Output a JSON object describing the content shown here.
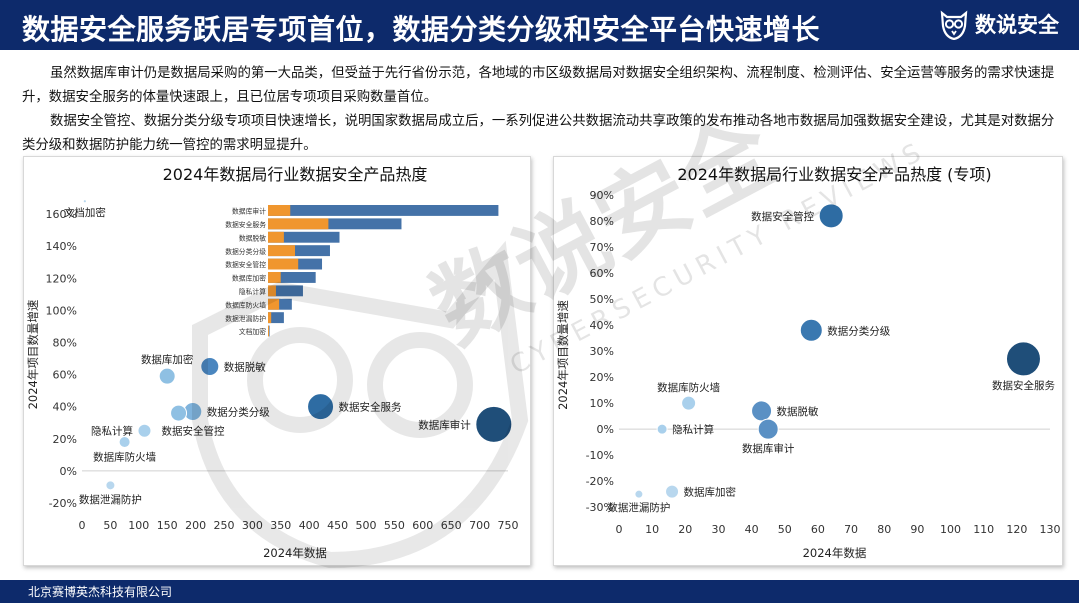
{
  "header": {
    "title": "数据安全服务跃居专项首位，数据分类分级和安全平台快速增长",
    "logo_text": "数说安全",
    "logo_icon": "owl-logo-icon"
  },
  "intro": {
    "p1": "虽然数据库审计仍是数据局采购的第一大品类，但受益于先行省份示范，各地域的市区级数据局对数据安全组织架构、流程制度、检测评估、安全运营等服务的需求快速提升，数据安全服务的体量快速跟上，且已位居专项项目采购数量首位。",
    "p2": "数据安全管控、数据分类分级专项项目快速增长，说明国家数据局成立后，一系列促进公共数据流动共享政策的发布推动各地市数据局加强数据安全建设，尤其是对数据分类分级和数据防护能力统一管控的需求明显提升。"
  },
  "watermark": {
    "text": "数说安全",
    "subtext": "CYBERSECURITY REVIEWS"
  },
  "footer": {
    "company": "北京赛博英杰科技有限公司"
  },
  "colors": {
    "navy": "#0d2a6b",
    "bar_blue": "#4472a8",
    "bar_orange": "#f0962e"
  },
  "chart_data": [
    {
      "type": "scatter",
      "title": "2024年数据局行业数据安全产品热度",
      "xlabel": "2024年数据",
      "ylabel": "2024年项目数量增速",
      "xlim": [
        0,
        750
      ],
      "ylim": [
        -25,
        170
      ],
      "xticks": [
        0,
        50,
        100,
        150,
        200,
        250,
        300,
        350,
        400,
        450,
        500,
        550,
        600,
        650,
        700,
        750
      ],
      "yticks": [
        -20,
        0,
        20,
        40,
        60,
        80,
        100,
        120,
        140,
        160
      ],
      "ytick_suffix": "%",
      "points": [
        {
          "label": "数据库审计",
          "x": 725,
          "y": 29,
          "size": 18,
          "color": "#1f4e79",
          "lpos": "left"
        },
        {
          "label": "数据安全服务",
          "x": 420,
          "y": 40,
          "size": 13,
          "color": "#2e6ca3",
          "lpos": "right"
        },
        {
          "label": "数据分类分级",
          "x": 195,
          "y": 37,
          "size": 9,
          "color": "#7fb3dc",
          "lpos": "right"
        },
        {
          "label": "数据脱敏",
          "x": 225,
          "y": 65,
          "size": 9,
          "color": "#4a86bf",
          "lpos": "right"
        },
        {
          "label": "数据库加密",
          "x": 150,
          "y": 59,
          "size": 8,
          "color": "#8fc0e3",
          "lpos": "top"
        },
        {
          "label": "数据安全管控",
          "x": 170,
          "y": 36,
          "size": 8,
          "color": "#8fc0e3",
          "lpos": "none"
        },
        {
          "label": "隐私计算",
          "x": 110,
          "y": 25,
          "size": 6.5,
          "color": "#a9d0ec",
          "lpos": "left"
        },
        {
          "label": "数据库防火墙",
          "x": 75,
          "y": 18,
          "size": 5.5,
          "color": "#a9d0ec",
          "lpos": "below"
        },
        {
          "label": "数据泄漏防护",
          "x": 50,
          "y": -9,
          "size": 4.5,
          "color": "#b8d7ee",
          "lpos": "below"
        },
        {
          "label": "文档加密",
          "x": 5,
          "y": 168,
          "size": 1.6,
          "color": "#b8d7ee",
          "lpos": "below"
        }
      ],
      "extra_labels": [
        {
          "text": "数据安全管控",
          "x": 140,
          "y": 25
        }
      ],
      "inset_bar": {
        "type": "bar",
        "orientation": "horizontal",
        "categories": [
          "数据库审计",
          "数据安全服务",
          "数据脱敏",
          "数据分类分级",
          "数据安全管控",
          "数据库加密",
          "隐私计算",
          "数据库防火墙",
          "数据泄漏防护",
          "文档加密"
        ],
        "xlim": [
          0,
          730
        ],
        "series": [
          {
            "values": [
              70,
              190,
              50,
              85,
              95,
              40,
              25,
              35,
              10,
              3
            ],
            "color": "#f0962e"
          },
          {
            "values": [
              725,
              420,
              225,
              195,
              170,
              150,
              110,
              75,
              50,
              5
            ],
            "color": "#4472a8"
          }
        ]
      }
    },
    {
      "type": "scatter",
      "title": "2024年数据局行业数据安全产品热度 (专项)",
      "xlabel": "2024年数据",
      "ylabel": "2024年项目数量增速",
      "xlim": [
        0,
        130
      ],
      "ylim": [
        -33,
        90
      ],
      "xticks": [
        0,
        10,
        20,
        30,
        40,
        50,
        60,
        70,
        80,
        90,
        100,
        110,
        120,
        130
      ],
      "yticks": [
        -30,
        -20,
        -10,
        0,
        10,
        20,
        30,
        40,
        50,
        60,
        70,
        80,
        90
      ],
      "ytick_suffix": "%",
      "points": [
        {
          "label": "数据安全服务",
          "x": 122,
          "y": 27,
          "size": 17,
          "color": "#1f4e79",
          "lpos": "below"
        },
        {
          "label": "数据安全管控",
          "x": 64,
          "y": 82,
          "size": 12,
          "color": "#2e6ca3",
          "lpos": "left"
        },
        {
          "label": "数据分类分级",
          "x": 58,
          "y": 38,
          "size": 11,
          "color": "#3a78b0",
          "lpos": "right"
        },
        {
          "label": "数据脱敏",
          "x": 43,
          "y": 7,
          "size": 10,
          "color": "#5a90c4",
          "lpos": "right"
        },
        {
          "label": "数据库审计",
          "x": 45,
          "y": 0,
          "size": 10,
          "color": "#5a90c4",
          "lpos": "below"
        },
        {
          "label": "数据库防火墙",
          "x": 21,
          "y": 10,
          "size": 7,
          "color": "#a9d0ec",
          "lpos": "top"
        },
        {
          "label": "隐私计算",
          "x": 13,
          "y": 0,
          "size": 5,
          "color": "#a9d0ec",
          "lpos": "right"
        },
        {
          "label": "数据库加密",
          "x": 16,
          "y": -24,
          "size": 6.5,
          "color": "#b8d7ee",
          "lpos": "right"
        },
        {
          "label": "数据泄漏防护",
          "x": 6,
          "y": -25,
          "size": 4,
          "color": "#b8d7ee",
          "lpos": "below"
        }
      ],
      "extra_labels": []
    }
  ]
}
